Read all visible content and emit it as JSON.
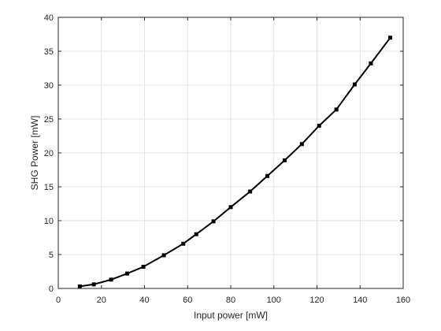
{
  "chart_data": {
    "type": "line",
    "title": "",
    "xlabel": "Input power [mW]",
    "ylabel": "SHG Power [mW]",
    "xlim": [
      0,
      160
    ],
    "ylim": [
      0,
      40
    ],
    "xticks": [
      0,
      20,
      40,
      60,
      80,
      100,
      120,
      140,
      160
    ],
    "yticks": [
      0,
      5,
      10,
      15,
      20,
      25,
      30,
      35,
      40
    ],
    "grid": true,
    "legend": "none",
    "series": [
      {
        "color": "#000000",
        "marker": "square",
        "x": [
          10,
          16.5,
          24.5,
          32,
          39.5,
          49,
          58,
          64,
          72,
          80,
          89,
          97,
          105,
          113,
          121,
          129,
          137.5,
          145,
          154
        ],
        "y": [
          0.3,
          0.6,
          1.3,
          2.2,
          3.2,
          4.9,
          6.6,
          8.0,
          9.9,
          12.0,
          14.3,
          16.6,
          18.9,
          21.3,
          24.0,
          26.4,
          30.1,
          33.2,
          37.0
        ]
      }
    ]
  }
}
